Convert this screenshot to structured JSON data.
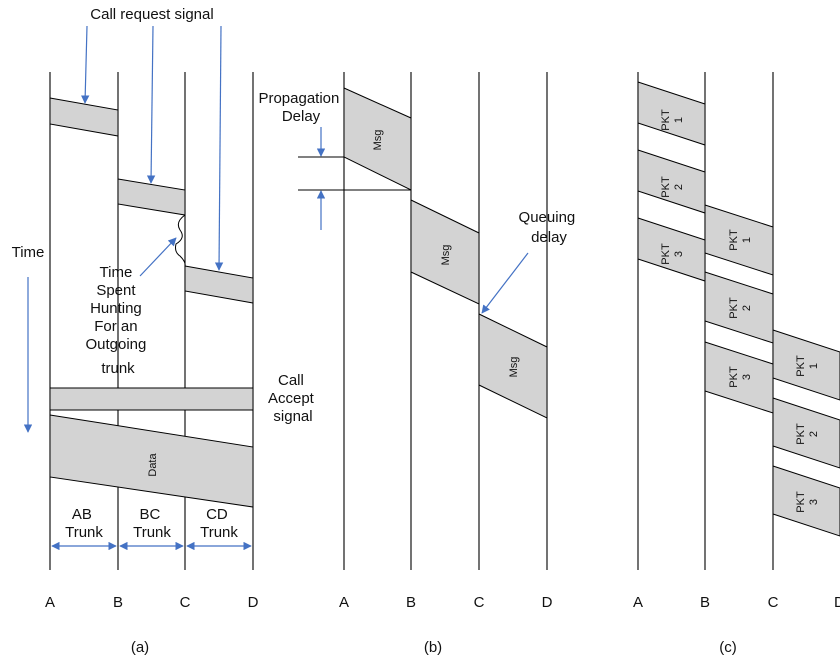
{
  "panel_a": {
    "caption": "(a)",
    "nodes": [
      "A",
      "B",
      "C",
      "D"
    ],
    "call_request_label": "Call request signal",
    "time_label": "Time",
    "hunting_label": [
      "Time",
      "Spent",
      "Hunting",
      "For an",
      "Outgoing",
      "trunk"
    ],
    "call_accept_label": [
      "Call",
      "Accept",
      "signal"
    ],
    "data_label": "Data",
    "trunks": [
      [
        "AB",
        "Trunk"
      ],
      [
        "BC",
        "Trunk"
      ],
      [
        "CD",
        "Trunk"
      ]
    ]
  },
  "panel_b": {
    "caption": "(b)",
    "nodes": [
      "A",
      "B",
      "C",
      "D"
    ],
    "propagation_label": [
      "Propagation",
      "Delay"
    ],
    "queuing_label": [
      "Queuing",
      "delay"
    ],
    "msg_label": "Msg"
  },
  "panel_c": {
    "caption": "(c)",
    "nodes": [
      "A",
      "B",
      "C",
      "D"
    ],
    "packets": [
      [
        "PKT",
        "1"
      ],
      [
        "PKT",
        "2"
      ],
      [
        "PKT",
        "3"
      ]
    ]
  },
  "colors": {
    "band": "#d3d3d3",
    "arrow": "#4472c4"
  }
}
